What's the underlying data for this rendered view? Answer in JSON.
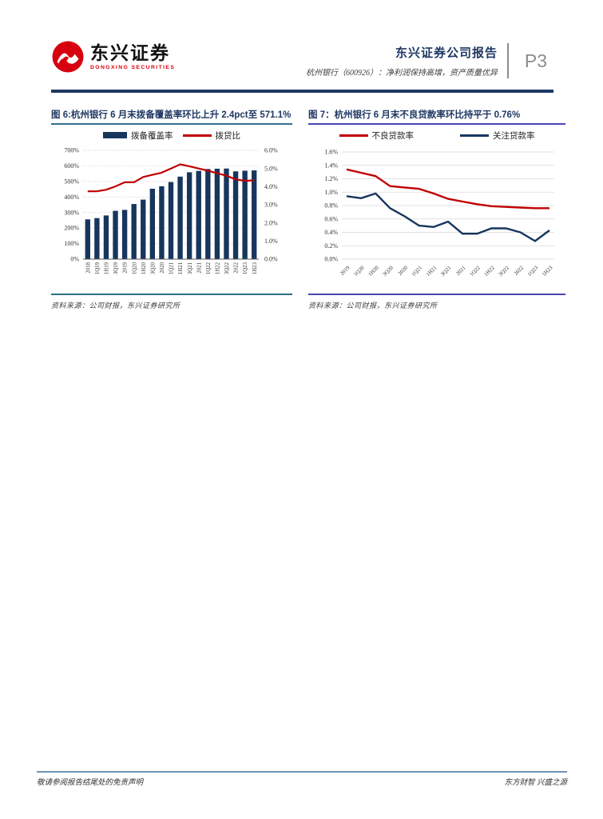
{
  "header": {
    "logo_cn": "东兴证券",
    "logo_en": "DONGXING SECURITIES",
    "report_type": "东兴证券公司报告",
    "report_subtitle": "杭州银行（600926）：净利润保持高增，资产质量优异",
    "page_number": "P3"
  },
  "figures": [
    {
      "title": "图 6:杭州银行 6 月末拨备覆盖率环比上升 2.4pct至 571.1%",
      "source": "资料来源：公司财报，东兴证券研究所"
    },
    {
      "title": "图 7：杭州银行 6 月末不良贷款率环比持平于 0.76%",
      "source": "资料来源：公司财报，东兴证券研究所"
    }
  ],
  "footer": {
    "left": "敬请参阅报告结尾处的免责声明",
    "right": "东方财智 兴盛之源"
  },
  "colors": {
    "navy": "#17365d",
    "red": "#c00000",
    "title_blue": "#1f3864"
  },
  "chart_data": [
    {
      "type": "bar",
      "subtype": "bar+line-dual-axis",
      "title": "图 6:杭州银行 6 月末拨备覆盖率环比上升 2.4pct至 571.1%",
      "categories": [
        "2018",
        "1Q19",
        "1H19",
        "3Q19",
        "2019",
        "1Q20",
        "1H20",
        "3Q20",
        "2020",
        "1Q21",
        "1H21",
        "3Q21",
        "2021",
        "1Q22",
        "1H22",
        "3Q22",
        "2022",
        "1Q23",
        "1H23"
      ],
      "series": [
        {
          "name": "拨备覆盖率",
          "type": "bar",
          "axis": "left",
          "color": "#17365d",
          "values": [
            256,
            264,
            281,
            311,
            317,
            355,
            383,
            453,
            469,
            496,
            531,
            559,
            568,
            580,
            582,
            583,
            565,
            569,
            571
          ]
        },
        {
          "name": "拨贷比",
          "type": "line",
          "axis": "right",
          "color": "#c00000",
          "values": [
            3.74,
            3.74,
            3.83,
            4.01,
            4.24,
            4.24,
            4.53,
            4.65,
            4.77,
            5.0,
            5.23,
            5.12,
            5.0,
            4.88,
            4.74,
            4.6,
            4.4,
            4.32,
            4.35
          ]
        }
      ],
      "left_axis": {
        "min": 0,
        "max": 700,
        "step": 100,
        "suffix": "%",
        "decimals": 0
      },
      "right_axis": {
        "min": 0,
        "max": 6,
        "step": 1,
        "suffix": "%",
        "decimals": 1
      },
      "grid": "dotted",
      "legend_position": "top",
      "xlabel_rotation": -90
    },
    {
      "type": "line",
      "title": "图 7：杭州银行 6 月末不良贷款率环比持平于 0.76%",
      "categories": [
        "2019",
        "1Q20",
        "1H20",
        "3Q20",
        "2020",
        "1Q21",
        "1H21",
        "3Q21",
        "2021",
        "1Q22",
        "1H22",
        "3Q22",
        "2022",
        "1Q23",
        "1H23"
      ],
      "series": [
        {
          "name": "不良贷款率",
          "color": "#c00000",
          "values": [
            1.34,
            1.29,
            1.24,
            1.09,
            1.07,
            1.05,
            0.98,
            0.9,
            0.86,
            0.82,
            0.79,
            0.78,
            0.77,
            0.76,
            0.76
          ]
        },
        {
          "name": "关注贷款率",
          "color": "#17365d",
          "values": [
            0.94,
            0.91,
            0.98,
            0.76,
            0.64,
            0.5,
            0.48,
            0.56,
            0.38,
            0.38,
            0.46,
            0.46,
            0.4,
            0.27,
            0.43
          ]
        }
      ],
      "y_axis": {
        "min": 0,
        "max": 1.6,
        "step": 0.2,
        "suffix": "%",
        "decimals": 1
      },
      "grid": "solid",
      "legend_position": "top",
      "xlabel_rotation": -45
    }
  ]
}
